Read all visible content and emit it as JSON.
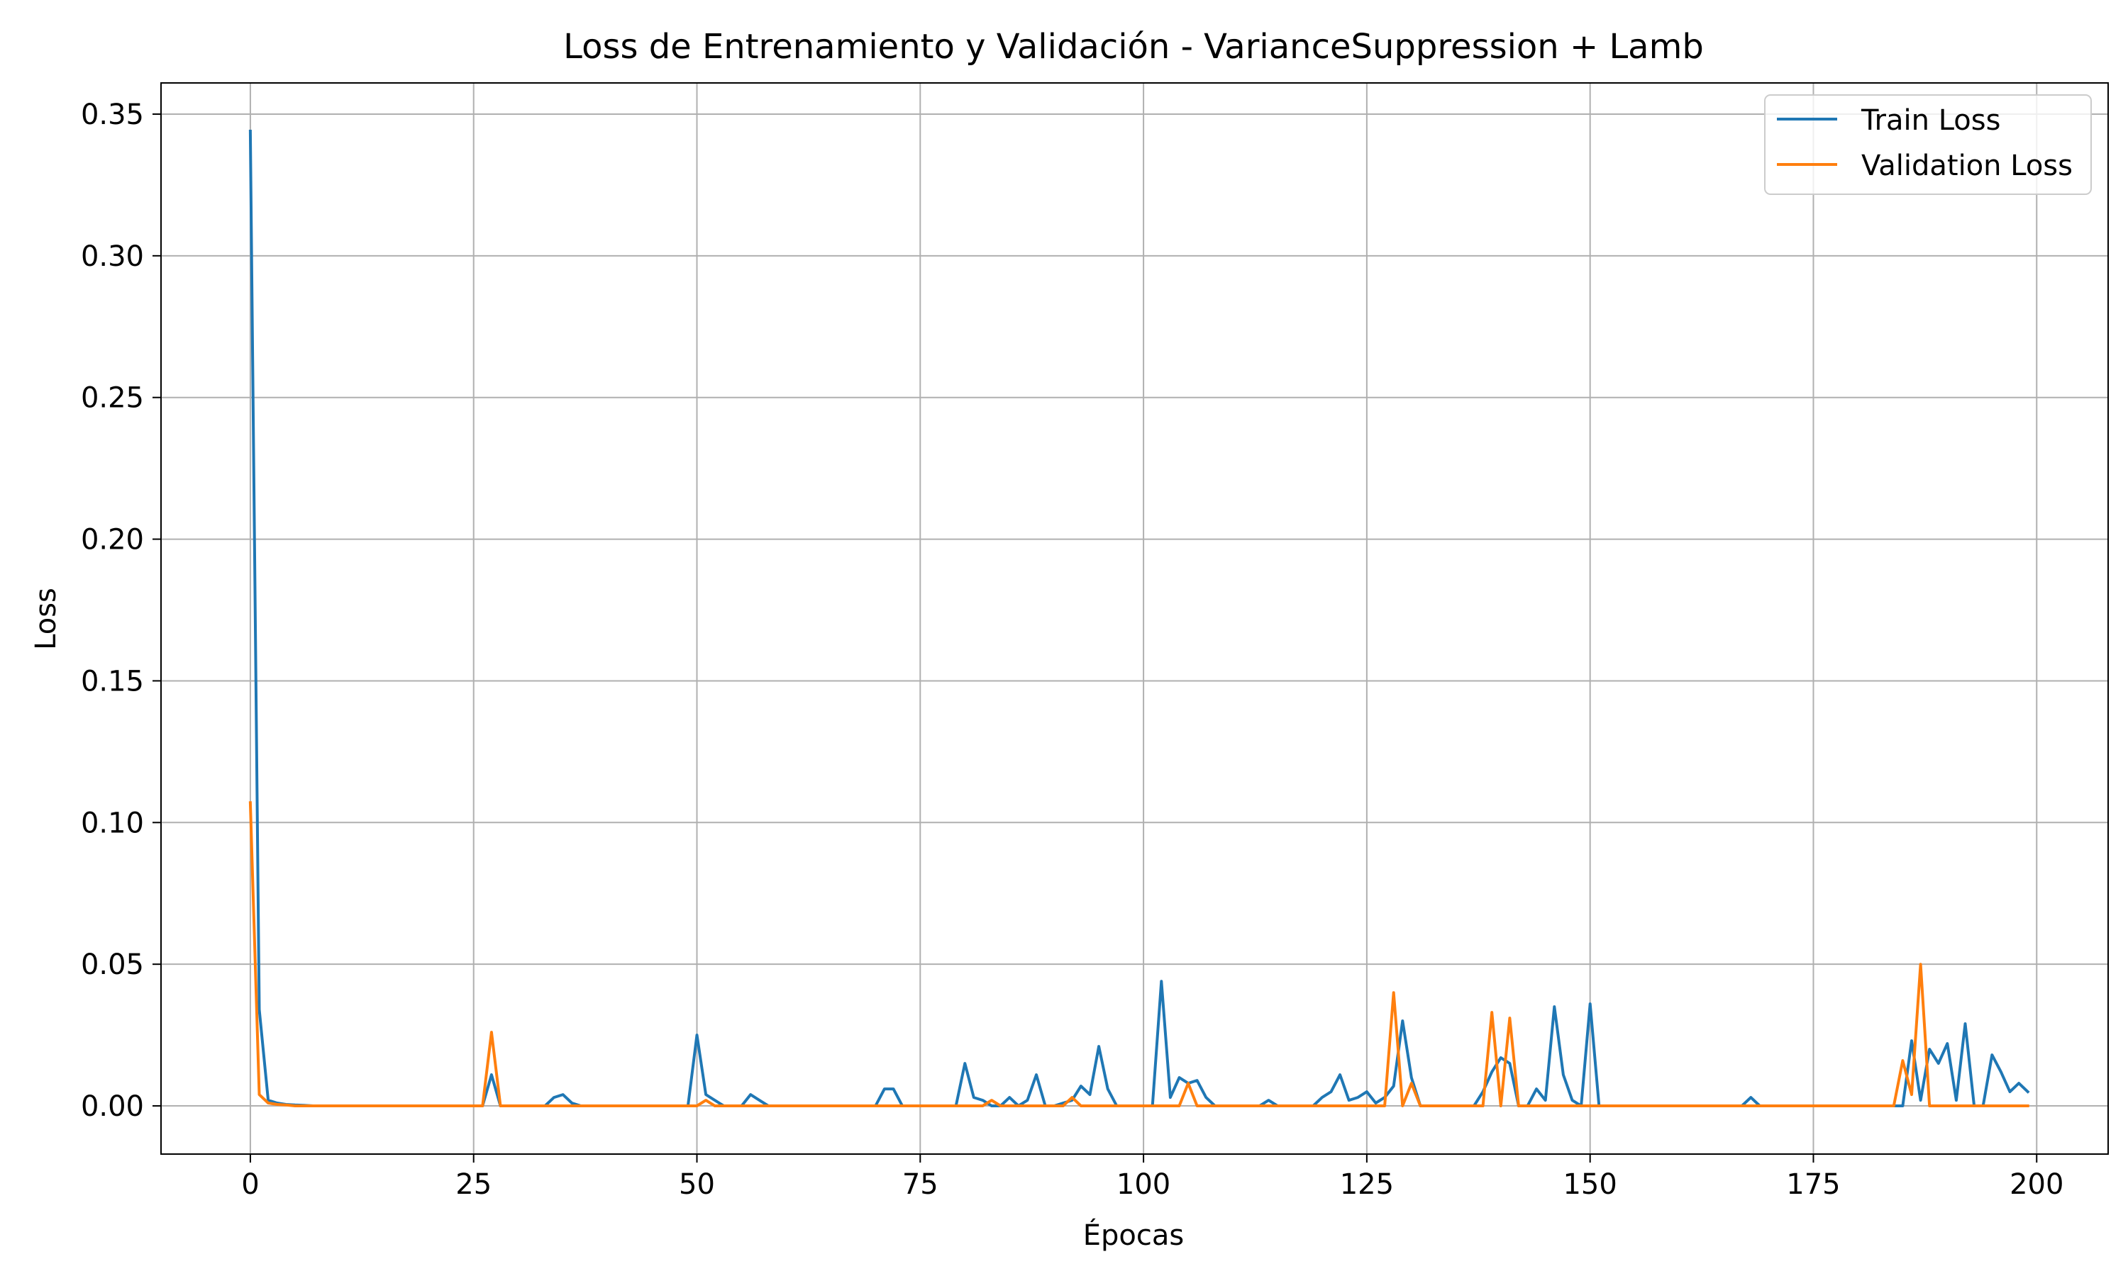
{
  "chart_data": {
    "type": "line",
    "title": "Loss de Entrenamiento y Validación - VarianceSuppression + Lamb",
    "xlabel": "Épocas",
    "ylabel": "Loss",
    "xlim": [
      -10,
      208
    ],
    "ylim": [
      -0.017,
      0.361
    ],
    "xticks": [
      0,
      25,
      50,
      75,
      100,
      125,
      150,
      175,
      200
    ],
    "xtick_labels": [
      "0",
      "25",
      "50",
      "75",
      "100",
      "125",
      "150",
      "175",
      "200"
    ],
    "yticks": [
      0.0,
      0.05,
      0.1,
      0.15,
      0.2,
      0.25,
      0.3,
      0.35
    ],
    "ytick_labels": [
      "0.00",
      "0.05",
      "0.10",
      "0.15",
      "0.20",
      "0.25",
      "0.30",
      "0.35"
    ],
    "grid": true,
    "legend_position": "top-right",
    "series": [
      {
        "name": "Train Loss",
        "color": "#1f77b4",
        "points": [
          [
            0,
            0.344
          ],
          [
            1,
            0.034
          ],
          [
            2,
            0.002
          ],
          [
            3,
            0.001
          ],
          [
            4,
            0.0005
          ],
          [
            5,
            0.0003
          ],
          [
            6,
            0.0002
          ],
          [
            7,
            0
          ],
          [
            26,
            0
          ],
          [
            27,
            0.011
          ],
          [
            28,
            0
          ],
          [
            33,
            0
          ],
          [
            34,
            0.003
          ],
          [
            35,
            0.004
          ],
          [
            36,
            0.001
          ],
          [
            37,
            0
          ],
          [
            49,
            0
          ],
          [
            50,
            0.025
          ],
          [
            51,
            0.004
          ],
          [
            52,
            0.002
          ],
          [
            53,
            0
          ],
          [
            55,
            0
          ],
          [
            56,
            0.004
          ],
          [
            57,
            0.002
          ],
          [
            58,
            0
          ],
          [
            70,
            0
          ],
          [
            71,
            0.006
          ],
          [
            72,
            0.006
          ],
          [
            73,
            0
          ],
          [
            79,
            0
          ],
          [
            80,
            0.015
          ],
          [
            81,
            0.003
          ],
          [
            82,
            0.002
          ],
          [
            83,
            0
          ],
          [
            84,
            0
          ],
          [
            85,
            0.003
          ],
          [
            86,
            0
          ],
          [
            87,
            0.002
          ],
          [
            88,
            0.011
          ],
          [
            89,
            0
          ],
          [
            90,
            0
          ],
          [
            91,
            0.001
          ],
          [
            92,
            0.002
          ],
          [
            93,
            0.007
          ],
          [
            94,
            0.004
          ],
          [
            95,
            0.021
          ],
          [
            96,
            0.006
          ],
          [
            97,
            0
          ],
          [
            101,
            0
          ],
          [
            102,
            0.044
          ],
          [
            103,
            0.003
          ],
          [
            104,
            0.01
          ],
          [
            105,
            0.008
          ],
          [
            106,
            0.009
          ],
          [
            107,
            0.003
          ],
          [
            108,
            0
          ],
          [
            113,
            0
          ],
          [
            114,
            0.002
          ],
          [
            115,
            0
          ],
          [
            119,
            0
          ],
          [
            120,
            0.003
          ],
          [
            121,
            0.005
          ],
          [
            122,
            0.011
          ],
          [
            123,
            0.002
          ],
          [
            124,
            0.003
          ],
          [
            125,
            0.005
          ],
          [
            126,
            0.001
          ],
          [
            127,
            0.003
          ],
          [
            128,
            0.007
          ],
          [
            129,
            0.03
          ],
          [
            130,
            0.01
          ],
          [
            131,
            0
          ],
          [
            137,
            0
          ],
          [
            138,
            0.005
          ],
          [
            139,
            0.012
          ],
          [
            140,
            0.017
          ],
          [
            141,
            0.015
          ],
          [
            142,
            0
          ],
          [
            143,
            0
          ],
          [
            144,
            0.006
          ],
          [
            145,
            0.002
          ],
          [
            146,
            0.035
          ],
          [
            147,
            0.011
          ],
          [
            148,
            0.002
          ],
          [
            149,
            0
          ],
          [
            150,
            0.036
          ],
          [
            151,
            0
          ],
          [
            167,
            0
          ],
          [
            168,
            0.003
          ],
          [
            169,
            0
          ],
          [
            185,
            0
          ],
          [
            186,
            0.023
          ],
          [
            187,
            0.002
          ],
          [
            188,
            0.02
          ],
          [
            189,
            0.015
          ],
          [
            190,
            0.022
          ],
          [
            191,
            0.002
          ],
          [
            192,
            0.029
          ],
          [
            193,
            0
          ],
          [
            194,
            0
          ],
          [
            195,
            0.018
          ],
          [
            196,
            0.012
          ],
          [
            197,
            0.005
          ],
          [
            198,
            0.008
          ],
          [
            199,
            0.005
          ]
        ]
      },
      {
        "name": "Validation Loss",
        "color": "#ff7f0e",
        "points": [
          [
            0,
            0.107
          ],
          [
            1,
            0.004
          ],
          [
            2,
            0.001
          ],
          [
            3,
            0.0005
          ],
          [
            4,
            0.0003
          ],
          [
            5,
            0
          ],
          [
            26,
            0
          ],
          [
            27,
            0.026
          ],
          [
            28,
            0
          ],
          [
            50,
            0
          ],
          [
            51,
            0.002
          ],
          [
            52,
            0
          ],
          [
            82,
            0
          ],
          [
            83,
            0.002
          ],
          [
            84,
            0
          ],
          [
            91,
            0
          ],
          [
            92,
            0.003
          ],
          [
            93,
            0
          ],
          [
            104,
            0
          ],
          [
            105,
            0.008
          ],
          [
            106,
            0
          ],
          [
            127,
            0
          ],
          [
            128,
            0.04
          ],
          [
            129,
            0
          ],
          [
            130,
            0.008
          ],
          [
            131,
            0
          ],
          [
            138,
            0
          ],
          [
            139,
            0.033
          ],
          [
            140,
            0
          ],
          [
            141,
            0.031
          ],
          [
            142,
            0
          ],
          [
            184,
            0
          ],
          [
            185,
            0.016
          ],
          [
            186,
            0.004
          ],
          [
            187,
            0.05
          ],
          [
            188,
            0
          ],
          [
            199,
            0
          ]
        ]
      }
    ]
  }
}
